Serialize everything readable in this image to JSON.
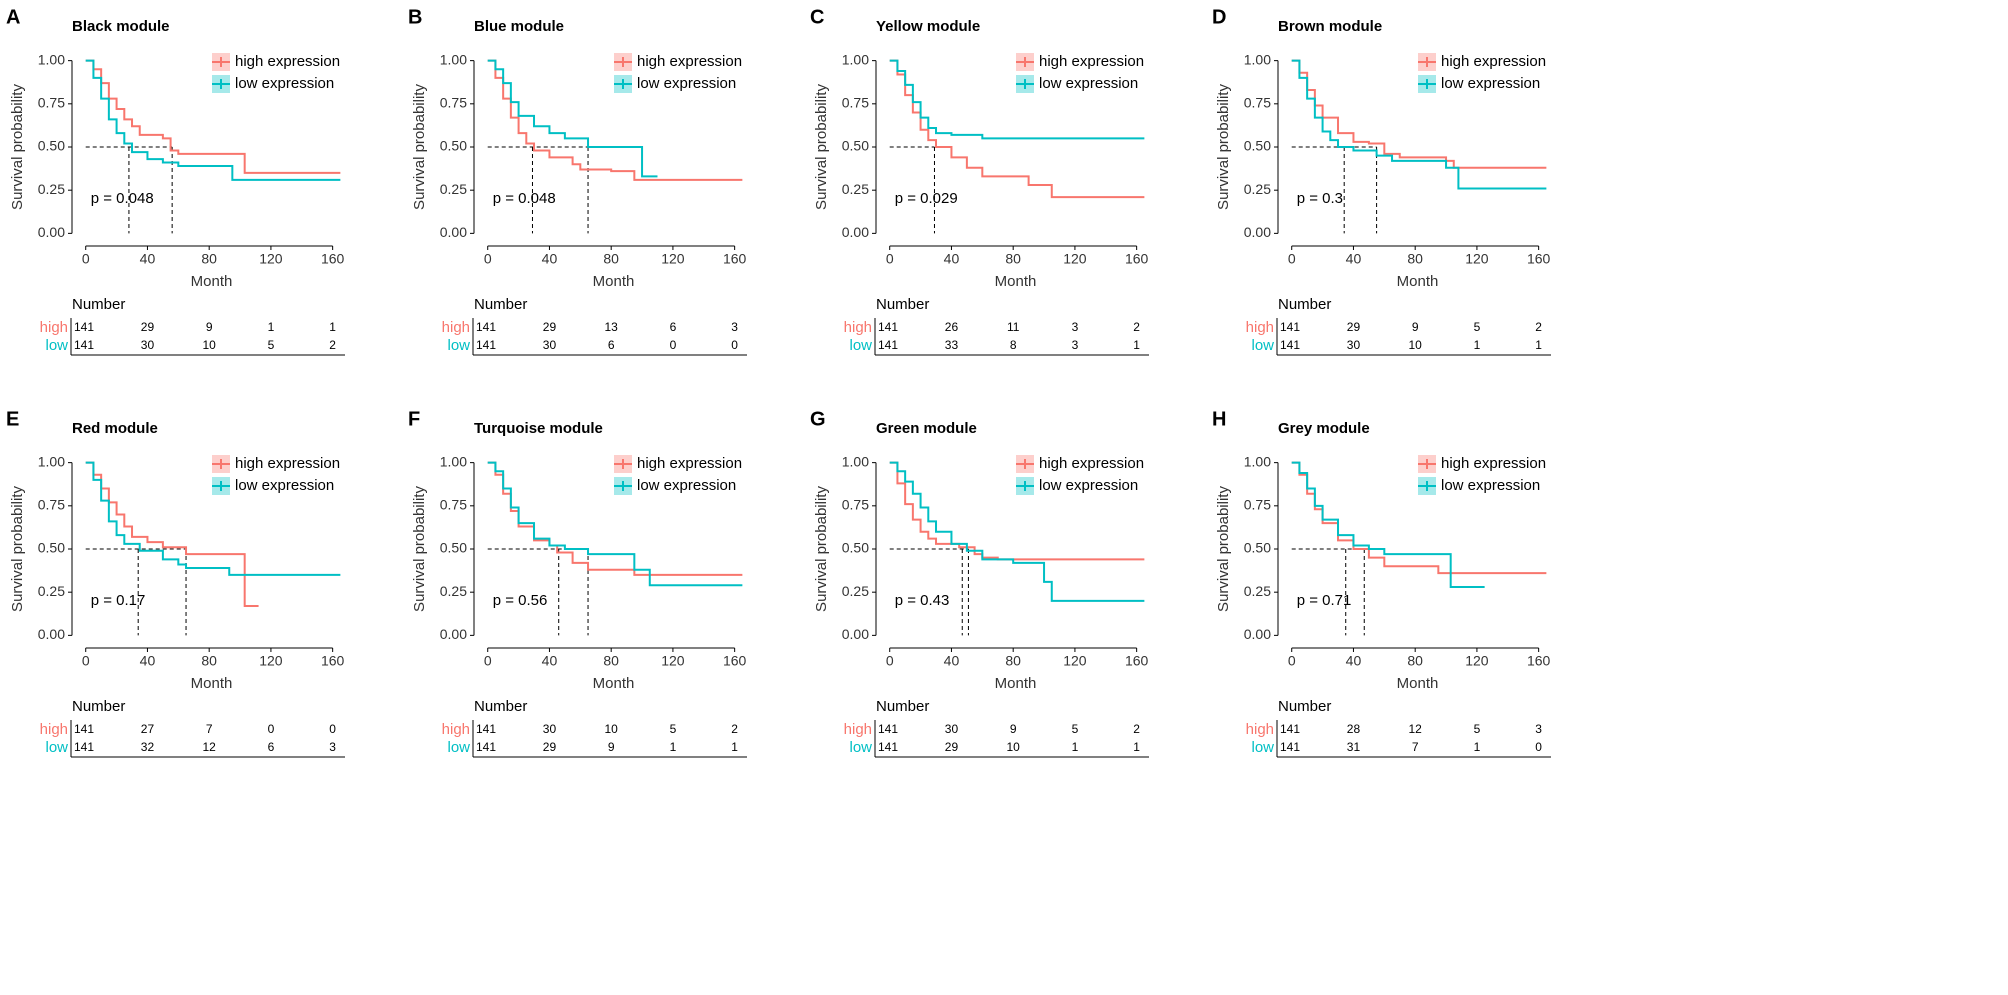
{
  "chart_data": [
    {
      "type": "km",
      "panel": "A",
      "title": "Black module",
      "xlabel": "Month",
      "ylabel": "Survival probability",
      "annotation": "p = 0.048",
      "xlim": [
        -5,
        168
      ],
      "xticks": [
        0,
        40,
        80,
        120,
        160
      ],
      "ylim": [
        -0.05,
        1.05
      ],
      "yticks": [
        {
          "value": 0,
          "label": "0.00"
        },
        {
          "value": 0.25,
          "label": "0.25"
        },
        {
          "value": 0.5,
          "label": "0.50"
        },
        {
          "value": 0.75,
          "label": "0.75"
        },
        {
          "value": 1,
          "label": "1.00"
        }
      ],
      "legend": "top-right",
      "median_level": 0.5,
      "medians": [
        28,
        56
      ],
      "series": [
        {
          "name": "high expression",
          "color": "#F8766D",
          "x": [
            0,
            5,
            10,
            15,
            20,
            25,
            30,
            35,
            50,
            55,
            60,
            103,
            165
          ],
          "values": [
            1,
            0.95,
            0.87,
            0.78,
            0.72,
            0.66,
            0.62,
            0.57,
            0.55,
            0.48,
            0.46,
            0.35,
            0.35
          ]
        },
        {
          "name": "low expression",
          "color": "#00BFC4",
          "x": [
            0,
            5,
            10,
            15,
            20,
            25,
            30,
            40,
            50,
            60,
            95,
            165
          ],
          "values": [
            1,
            0.9,
            0.78,
            0.66,
            0.58,
            0.52,
            0.47,
            0.43,
            0.41,
            0.39,
            0.31,
            0.31
          ]
        }
      ],
      "risk_table": {
        "title": "Number",
        "rows": [
          {
            "name": "high",
            "values": [
              141,
              29,
              9,
              1,
              1
            ]
          },
          {
            "name": "low",
            "values": [
              141,
              30,
              10,
              5,
              2
            ]
          }
        ]
      }
    },
    {
      "type": "km",
      "panel": "B",
      "title": "Blue module",
      "xlabel": "Month",
      "ylabel": "Survival probability",
      "annotation": "p = 0.048",
      "xlim": [
        -5,
        168
      ],
      "xticks": [
        0,
        40,
        80,
        120,
        160
      ],
      "ylim": [
        -0.05,
        1.05
      ],
      "yticks": [
        {
          "value": 0,
          "label": "0.00"
        },
        {
          "value": 0.25,
          "label": "0.25"
        },
        {
          "value": 0.5,
          "label": "0.50"
        },
        {
          "value": 0.75,
          "label": "0.75"
        },
        {
          "value": 1,
          "label": "1.00"
        }
      ],
      "legend": "top-right",
      "median_level": 0.5,
      "medians": [
        29,
        65
      ],
      "series": [
        {
          "name": "high expression",
          "color": "#F8766D",
          "x": [
            0,
            5,
            10,
            15,
            20,
            25,
            30,
            40,
            55,
            60,
            80,
            95,
            165
          ],
          "values": [
            1,
            0.9,
            0.78,
            0.67,
            0.58,
            0.52,
            0.48,
            0.44,
            0.4,
            0.37,
            0.36,
            0.31,
            0.31
          ]
        },
        {
          "name": "low expression",
          "color": "#00BFC4",
          "x": [
            0,
            5,
            10,
            15,
            20,
            30,
            40,
            50,
            65,
            100,
            110
          ],
          "values": [
            1,
            0.95,
            0.87,
            0.76,
            0.68,
            0.62,
            0.58,
            0.55,
            0.5,
            0.33,
            0.33
          ]
        }
      ],
      "risk_table": {
        "title": "Number",
        "rows": [
          {
            "name": "high",
            "values": [
              141,
              29,
              13,
              6,
              3
            ]
          },
          {
            "name": "low",
            "values": [
              141,
              30,
              6,
              0,
              0
            ]
          }
        ]
      }
    },
    {
      "type": "km",
      "panel": "C",
      "title": "Yellow module",
      "xlabel": "Month",
      "ylabel": "Survival probability",
      "annotation": "p = 0.029",
      "xlim": [
        -5,
        168
      ],
      "xticks": [
        0,
        40,
        80,
        120,
        160
      ],
      "ylim": [
        -0.05,
        1.05
      ],
      "yticks": [
        {
          "value": 0,
          "label": "0.00"
        },
        {
          "value": 0.25,
          "label": "0.25"
        },
        {
          "value": 0.5,
          "label": "0.50"
        },
        {
          "value": 0.75,
          "label": "0.75"
        },
        {
          "value": 1,
          "label": "1.00"
        }
      ],
      "legend": "top-right",
      "median_level": 0.5,
      "medians": [
        29
      ],
      "series": [
        {
          "name": "high expression",
          "color": "#F8766D",
          "x": [
            0,
            5,
            10,
            15,
            20,
            25,
            30,
            40,
            50,
            60,
            90,
            105,
            165
          ],
          "values": [
            1,
            0.92,
            0.8,
            0.7,
            0.6,
            0.54,
            0.5,
            0.44,
            0.38,
            0.33,
            0.28,
            0.21,
            0.21
          ]
        },
        {
          "name": "low expression",
          "color": "#00BFC4",
          "x": [
            0,
            5,
            10,
            15,
            20,
            25,
            30,
            40,
            60,
            165
          ],
          "values": [
            1,
            0.94,
            0.86,
            0.76,
            0.67,
            0.61,
            0.58,
            0.57,
            0.55,
            0.55
          ]
        }
      ],
      "risk_table": {
        "title": "Number",
        "rows": [
          {
            "name": "high",
            "values": [
              141,
              26,
              11,
              3,
              2
            ]
          },
          {
            "name": "low",
            "values": [
              141,
              33,
              8,
              3,
              1
            ]
          }
        ]
      }
    },
    {
      "type": "km",
      "panel": "D",
      "title": "Brown module",
      "xlabel": "Month",
      "ylabel": "Survival probability",
      "annotation": "p = 0.3",
      "xlim": [
        -5,
        168
      ],
      "xticks": [
        0,
        40,
        80,
        120,
        160
      ],
      "ylim": [
        -0.05,
        1.05
      ],
      "yticks": [
        {
          "value": 0,
          "label": "0.00"
        },
        {
          "value": 0.25,
          "label": "0.25"
        },
        {
          "value": 0.5,
          "label": "0.50"
        },
        {
          "value": 0.75,
          "label": "0.75"
        },
        {
          "value": 1,
          "label": "1.00"
        }
      ],
      "legend": "top-right",
      "median_level": 0.5,
      "medians": [
        34,
        55
      ],
      "series": [
        {
          "name": "high expression",
          "color": "#F8766D",
          "x": [
            0,
            5,
            10,
            15,
            20,
            30,
            40,
            50,
            60,
            70,
            100,
            105,
            165
          ],
          "values": [
            1,
            0.93,
            0.83,
            0.74,
            0.67,
            0.58,
            0.53,
            0.52,
            0.46,
            0.44,
            0.42,
            0.38,
            0.38
          ]
        },
        {
          "name": "low expression",
          "color": "#00BFC4",
          "x": [
            0,
            5,
            10,
            15,
            20,
            25,
            30,
            40,
            55,
            65,
            100,
            108,
            165
          ],
          "values": [
            1,
            0.9,
            0.78,
            0.67,
            0.59,
            0.54,
            0.5,
            0.48,
            0.45,
            0.42,
            0.38,
            0.26,
            0.26
          ]
        }
      ],
      "risk_table": {
        "title": "Number",
        "rows": [
          {
            "name": "high",
            "values": [
              141,
              29,
              9,
              5,
              2
            ]
          },
          {
            "name": "low",
            "values": [
              141,
              30,
              10,
              1,
              1
            ]
          }
        ]
      }
    },
    {
      "type": "km",
      "panel": "E",
      "title": "Red module",
      "xlabel": "Month",
      "ylabel": "Survival probability",
      "annotation": "p = 0.17",
      "xlim": [
        -5,
        168
      ],
      "xticks": [
        0,
        40,
        80,
        120,
        160
      ],
      "ylim": [
        -0.05,
        1.05
      ],
      "yticks": [
        {
          "value": 0,
          "label": "0.00"
        },
        {
          "value": 0.25,
          "label": "0.25"
        },
        {
          "value": 0.5,
          "label": "0.50"
        },
        {
          "value": 0.75,
          "label": "0.75"
        },
        {
          "value": 1,
          "label": "1.00"
        }
      ],
      "legend": "top-right",
      "median_level": 0.5,
      "medians": [
        34,
        65
      ],
      "series": [
        {
          "name": "high expression",
          "color": "#F8766D",
          "x": [
            0,
            5,
            10,
            15,
            20,
            25,
            30,
            40,
            50,
            65,
            93,
            103,
            112
          ],
          "values": [
            1,
            0.93,
            0.85,
            0.77,
            0.7,
            0.63,
            0.57,
            0.54,
            0.51,
            0.47,
            0.47,
            0.17,
            0.17
          ]
        },
        {
          "name": "low expression",
          "color": "#00BFC4",
          "x": [
            0,
            5,
            10,
            15,
            20,
            25,
            35,
            50,
            60,
            65,
            93,
            165
          ],
          "values": [
            1,
            0.9,
            0.78,
            0.66,
            0.58,
            0.53,
            0.49,
            0.44,
            0.41,
            0.39,
            0.35,
            0.35
          ]
        }
      ],
      "risk_table": {
        "title": "Number",
        "rows": [
          {
            "name": "high",
            "values": [
              141,
              27,
              7,
              0,
              0
            ]
          },
          {
            "name": "low",
            "values": [
              141,
              32,
              12,
              6,
              3
            ]
          }
        ]
      }
    },
    {
      "type": "km",
      "panel": "F",
      "title": "Turquoise module",
      "xlabel": "Month",
      "ylabel": "Survival probability",
      "annotation": "p = 0.56",
      "xlim": [
        -5,
        168
      ],
      "xticks": [
        0,
        40,
        80,
        120,
        160
      ],
      "ylim": [
        -0.05,
        1.05
      ],
      "yticks": [
        {
          "value": 0,
          "label": "0.00"
        },
        {
          "value": 0.25,
          "label": "0.25"
        },
        {
          "value": 0.5,
          "label": "0.50"
        },
        {
          "value": 0.75,
          "label": "0.75"
        },
        {
          "value": 1,
          "label": "1.00"
        }
      ],
      "legend": "top-right",
      "median_level": 0.5,
      "medians": [
        46,
        65
      ],
      "series": [
        {
          "name": "high expression",
          "color": "#F8766D",
          "x": [
            0,
            5,
            10,
            15,
            20,
            30,
            40,
            45,
            55,
            65,
            95,
            165
          ],
          "values": [
            1,
            0.93,
            0.82,
            0.72,
            0.63,
            0.55,
            0.52,
            0.48,
            0.42,
            0.38,
            0.35,
            0.35
          ]
        },
        {
          "name": "low expression",
          "color": "#00BFC4",
          "x": [
            0,
            5,
            10,
            15,
            20,
            30,
            40,
            50,
            65,
            95,
            105,
            165
          ],
          "values": [
            1,
            0.95,
            0.85,
            0.74,
            0.65,
            0.56,
            0.52,
            0.5,
            0.47,
            0.38,
            0.29,
            0.29
          ]
        }
      ],
      "risk_table": {
        "title": "Number",
        "rows": [
          {
            "name": "high",
            "values": [
              141,
              30,
              10,
              5,
              2
            ]
          },
          {
            "name": "low",
            "values": [
              141,
              29,
              9,
              1,
              1
            ]
          }
        ]
      }
    },
    {
      "type": "km",
      "panel": "G",
      "title": "Green module",
      "xlabel": "Month",
      "ylabel": "Survival probability",
      "annotation": "p = 0.43",
      "xlim": [
        -5,
        168
      ],
      "xticks": [
        0,
        40,
        80,
        120,
        160
      ],
      "ylim": [
        -0.05,
        1.05
      ],
      "yticks": [
        {
          "value": 0,
          "label": "0.00"
        },
        {
          "value": 0.25,
          "label": "0.25"
        },
        {
          "value": 0.5,
          "label": "0.50"
        },
        {
          "value": 0.75,
          "label": "0.75"
        },
        {
          "value": 1,
          "label": "1.00"
        }
      ],
      "legend": "top-right",
      "median_level": 0.5,
      "medians": [
        47,
        51
      ],
      "series": [
        {
          "name": "high expression",
          "color": "#F8766D",
          "x": [
            0,
            5,
            10,
            15,
            20,
            25,
            30,
            45,
            55,
            60,
            70,
            165
          ],
          "values": [
            1,
            0.88,
            0.76,
            0.67,
            0.6,
            0.56,
            0.53,
            0.51,
            0.47,
            0.45,
            0.44,
            0.44
          ]
        },
        {
          "name": "low expression",
          "color": "#00BFC4",
          "x": [
            0,
            5,
            10,
            15,
            20,
            25,
            30,
            40,
            50,
            60,
            80,
            100,
            105,
            165
          ],
          "values": [
            1,
            0.95,
            0.89,
            0.82,
            0.74,
            0.66,
            0.6,
            0.53,
            0.49,
            0.44,
            0.42,
            0.31,
            0.2,
            0.2
          ]
        }
      ],
      "risk_table": {
        "title": "Number",
        "rows": [
          {
            "name": "high",
            "values": [
              141,
              30,
              9,
              5,
              2
            ]
          },
          {
            "name": "low",
            "values": [
              141,
              29,
              10,
              1,
              1
            ]
          }
        ]
      }
    },
    {
      "type": "km",
      "panel": "H",
      "title": "Grey module",
      "xlabel": "Month",
      "ylabel": "Survival probability",
      "annotation": "p = 0.71",
      "xlim": [
        -5,
        168
      ],
      "xticks": [
        0,
        40,
        80,
        120,
        160
      ],
      "ylim": [
        -0.05,
        1.05
      ],
      "yticks": [
        {
          "value": 0,
          "label": "0.00"
        },
        {
          "value": 0.25,
          "label": "0.25"
        },
        {
          "value": 0.5,
          "label": "0.50"
        },
        {
          "value": 0.75,
          "label": "0.75"
        },
        {
          "value": 1,
          "label": "1.00"
        }
      ],
      "legend": "top-right",
      "median_level": 0.5,
      "medians": [
        35,
        47
      ],
      "series": [
        {
          "name": "high expression",
          "color": "#F8766D",
          "x": [
            0,
            5,
            10,
            15,
            20,
            30,
            40,
            50,
            60,
            95,
            165
          ],
          "values": [
            1,
            0.93,
            0.82,
            0.73,
            0.65,
            0.55,
            0.5,
            0.45,
            0.4,
            0.36,
            0.36
          ]
        },
        {
          "name": "low expression",
          "color": "#00BFC4",
          "x": [
            0,
            5,
            10,
            15,
            20,
            30,
            40,
            50,
            60,
            95,
            103,
            125
          ],
          "values": [
            1,
            0.94,
            0.85,
            0.75,
            0.67,
            0.58,
            0.52,
            0.5,
            0.47,
            0.47,
            0.28,
            0.28
          ]
        }
      ],
      "risk_table": {
        "title": "Number",
        "rows": [
          {
            "name": "high",
            "values": [
              141,
              28,
              12,
              5,
              3
            ]
          },
          {
            "name": "low",
            "values": [
              141,
              31,
              7,
              1,
              0
            ]
          }
        ]
      }
    }
  ]
}
